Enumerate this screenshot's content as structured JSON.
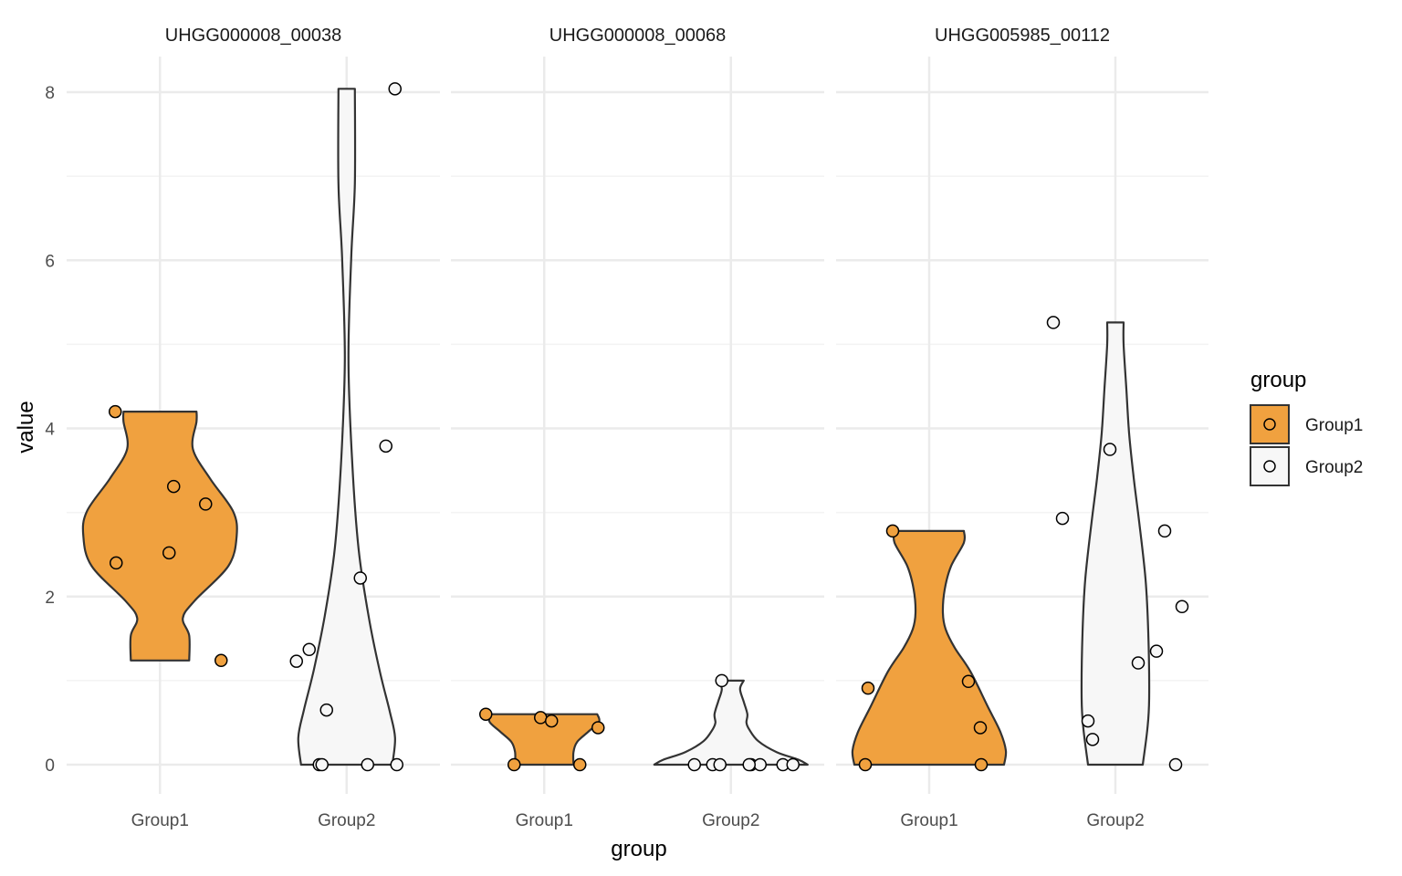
{
  "chart_data": {
    "type": "violin",
    "xlabel": "group",
    "ylabel": "value",
    "ylim": [
      -0.3,
      8.4
    ],
    "y_ticks": [
      0,
      2,
      4,
      6,
      8
    ],
    "grid": true,
    "legend": {
      "title": "group",
      "placement": "right",
      "entries": [
        {
          "label": "Group1",
          "color": "#F0A13F"
        },
        {
          "label": "Group2",
          "color": "#F7F7F7"
        }
      ]
    },
    "categories": [
      "Group1",
      "Group2"
    ],
    "panels": [
      {
        "title": "UHGG000008_00038",
        "groups": [
          {
            "name": "Group1",
            "min": 1.24,
            "max": 4.2,
            "points": [
              4.2,
              3.31,
              3.1,
              2.52,
              2.4,
              1.24
            ]
          },
          {
            "name": "Group2",
            "min": 0.0,
            "max": 8.04,
            "points": [
              8.04,
              3.79,
              2.22,
              1.37,
              1.23,
              0.65,
              0,
              0,
              0,
              0
            ]
          }
        ]
      },
      {
        "title": "UHGG000008_00068",
        "groups": [
          {
            "name": "Group1",
            "min": 0.0,
            "max": 0.6,
            "points": [
              0.6,
              0.56,
              0.52,
              0.44,
              0,
              0
            ]
          },
          {
            "name": "Group2",
            "min": 0.0,
            "max": 1.0,
            "points": [
              1.0,
              0,
              0,
              0,
              0,
              0,
              0,
              0,
              0
            ]
          }
        ]
      },
      {
        "title": "UHGG005985_00112",
        "groups": [
          {
            "name": "Group1",
            "min": 0.0,
            "max": 2.78,
            "points": [
              2.78,
              0.99,
              0.91,
              0.44,
              0,
              0
            ]
          },
          {
            "name": "Group2",
            "min": 0.0,
            "max": 5.26,
            "points": [
              5.26,
              3.75,
              2.93,
              2.78,
              1.88,
              1.35,
              1.21,
              0.52,
              0.3,
              0
            ]
          }
        ]
      }
    ]
  }
}
